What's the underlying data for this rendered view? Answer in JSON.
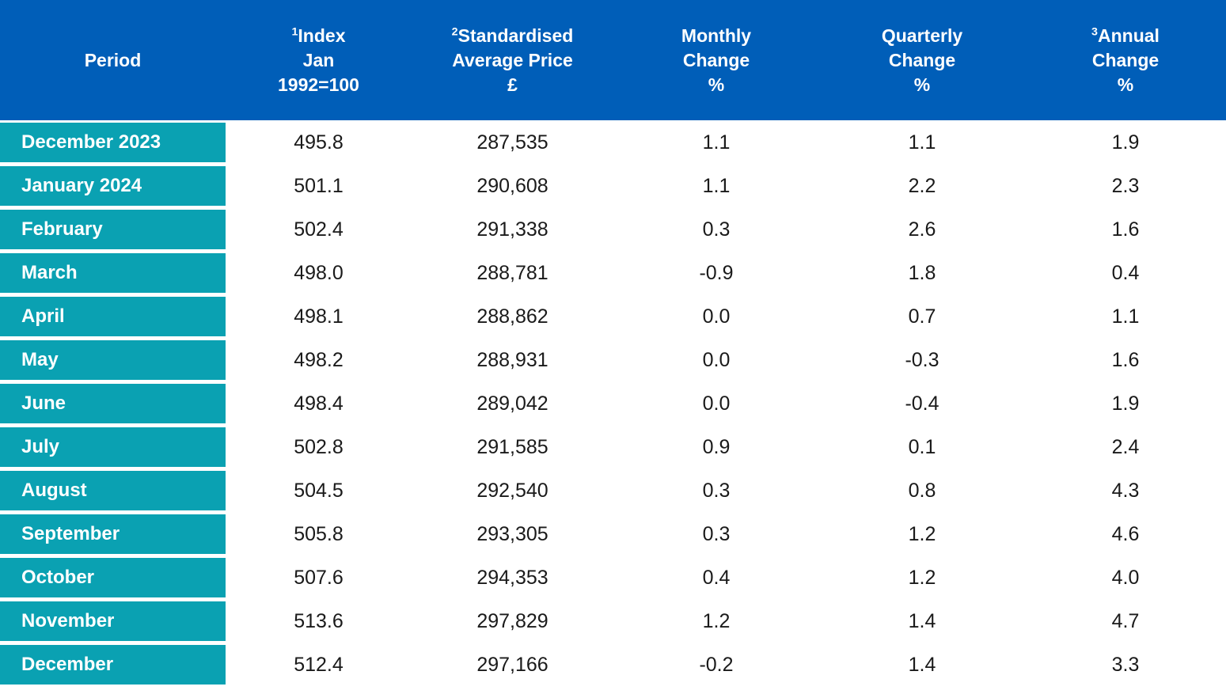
{
  "colors": {
    "header_bg": "#005EB8",
    "period_bg": "#0AA1B2",
    "header_text": "#FFFFFF",
    "data_text": "#1A1A1A"
  },
  "chart_data": {
    "type": "table",
    "columns": [
      {
        "sup": "",
        "label": "Period"
      },
      {
        "sup": "1",
        "label": "Index\nJan\n1992=100"
      },
      {
        "sup": "2",
        "label": "Standardised\nAverage Price\n£"
      },
      {
        "sup": "",
        "label": "Monthly\nChange\n%"
      },
      {
        "sup": "",
        "label": "Quarterly\nChange\n%"
      },
      {
        "sup": "3",
        "label": "Annual\nChange\n%"
      }
    ],
    "rows": [
      {
        "period": "December 2023",
        "index": "495.8",
        "price": "287,535",
        "monthly": "1.1",
        "quarterly": "1.1",
        "annual": "1.9"
      },
      {
        "period": "January 2024",
        "index": "501.1",
        "price": "290,608",
        "monthly": "1.1",
        "quarterly": "2.2",
        "annual": "2.3"
      },
      {
        "period": "February",
        "index": "502.4",
        "price": "291,338",
        "monthly": "0.3",
        "quarterly": "2.6",
        "annual": "1.6"
      },
      {
        "period": "March",
        "index": "498.0",
        "price": "288,781",
        "monthly": "-0.9",
        "quarterly": "1.8",
        "annual": "0.4"
      },
      {
        "period": "April",
        "index": "498.1",
        "price": "288,862",
        "monthly": "0.0",
        "quarterly": "0.7",
        "annual": "1.1"
      },
      {
        "period": "May",
        "index": "498.2",
        "price": "288,931",
        "monthly": "0.0",
        "quarterly": "-0.3",
        "annual": "1.6"
      },
      {
        "period": "June",
        "index": "498.4",
        "price": "289,042",
        "monthly": "0.0",
        "quarterly": "-0.4",
        "annual": "1.9"
      },
      {
        "period": "July",
        "index": "502.8",
        "price": "291,585",
        "monthly": "0.9",
        "quarterly": "0.1",
        "annual": "2.4"
      },
      {
        "period": "August",
        "index": "504.5",
        "price": "292,540",
        "monthly": "0.3",
        "quarterly": "0.8",
        "annual": "4.3"
      },
      {
        "period": "September",
        "index": "505.8",
        "price": "293,305",
        "monthly": "0.3",
        "quarterly": "1.2",
        "annual": "4.6"
      },
      {
        "period": "October",
        "index": "507.6",
        "price": "294,353",
        "monthly": "0.4",
        "quarterly": "1.2",
        "annual": "4.0"
      },
      {
        "period": "November",
        "index": "513.6",
        "price": "297,829",
        "monthly": "1.2",
        "quarterly": "1.4",
        "annual": "4.7"
      },
      {
        "period": "December",
        "index": "512.4",
        "price": "297,166",
        "monthly": "-0.2",
        "quarterly": "1.4",
        "annual": "3.3"
      }
    ]
  }
}
